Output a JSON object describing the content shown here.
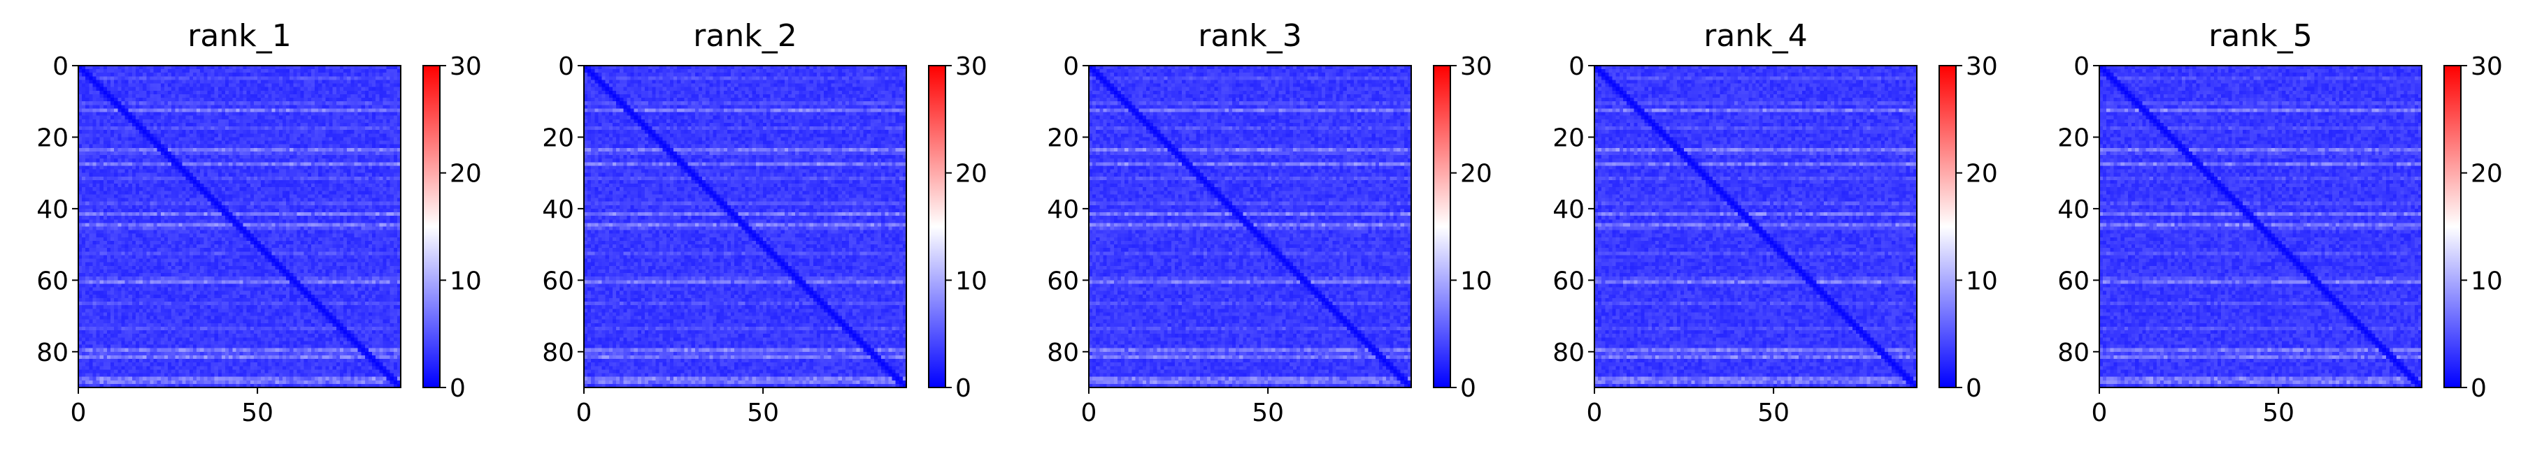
{
  "chart_data": [
    {
      "type": "heatmap",
      "title": "rank_1",
      "x_ticks": [
        0,
        50
      ],
      "y_ticks": [
        0,
        20,
        40,
        60,
        80
      ],
      "xlim": [
        0,
        90
      ],
      "ylim": [
        90,
        0
      ],
      "matrix_size": 90,
      "colorbar": {
        "ticks": [
          0,
          10,
          20,
          30
        ],
        "range": [
          0,
          30
        ],
        "colormap": "bwr"
      },
      "banded_rows": [
        12,
        23,
        27,
        41,
        44,
        60,
        79,
        81,
        87,
        88
      ]
    },
    {
      "type": "heatmap",
      "title": "rank_2",
      "x_ticks": [
        0,
        50
      ],
      "y_ticks": [
        0,
        20,
        40,
        60,
        80
      ],
      "xlim": [
        0,
        90
      ],
      "ylim": [
        90,
        0
      ],
      "matrix_size": 90,
      "colorbar": {
        "ticks": [
          0,
          10,
          20,
          30
        ],
        "range": [
          0,
          30
        ],
        "colormap": "bwr"
      },
      "banded_rows": [
        12,
        23,
        27,
        41,
        44,
        60,
        79,
        81,
        87,
        88
      ]
    },
    {
      "type": "heatmap",
      "title": "rank_3",
      "x_ticks": [
        0,
        50
      ],
      "y_ticks": [
        0,
        20,
        40,
        60,
        80
      ],
      "xlim": [
        0,
        90
      ],
      "ylim": [
        90,
        0
      ],
      "matrix_size": 90,
      "colorbar": {
        "ticks": [
          0,
          10,
          20,
          30
        ],
        "range": [
          0,
          30
        ],
        "colormap": "bwr"
      },
      "banded_rows": [
        12,
        23,
        27,
        41,
        44,
        60,
        79,
        81,
        87,
        88
      ]
    },
    {
      "type": "heatmap",
      "title": "rank_4",
      "x_ticks": [
        0,
        50
      ],
      "y_ticks": [
        0,
        20,
        40,
        60,
        80
      ],
      "xlim": [
        0,
        90
      ],
      "ylim": [
        90,
        0
      ],
      "matrix_size": 90,
      "colorbar": {
        "ticks": [
          0,
          10,
          20,
          30
        ],
        "range": [
          0,
          30
        ],
        "colormap": "bwr"
      },
      "banded_rows": [
        12,
        23,
        27,
        41,
        44,
        60,
        79,
        81,
        87,
        88
      ]
    },
    {
      "type": "heatmap",
      "title": "rank_5",
      "x_ticks": [
        0,
        50
      ],
      "y_ticks": [
        0,
        20,
        40,
        60,
        80
      ],
      "xlim": [
        0,
        90
      ],
      "ylim": [
        90,
        0
      ],
      "matrix_size": 90,
      "colorbar": {
        "ticks": [
          0,
          10,
          20,
          30
        ],
        "range": [
          0,
          30
        ],
        "colormap": "bwr"
      },
      "banded_rows": [
        12,
        23,
        27,
        41,
        44,
        60,
        79,
        81,
        87,
        88
      ]
    }
  ],
  "colors": {
    "low": "#0000ff",
    "mid": "#ffffff",
    "high": "#ff0000"
  }
}
